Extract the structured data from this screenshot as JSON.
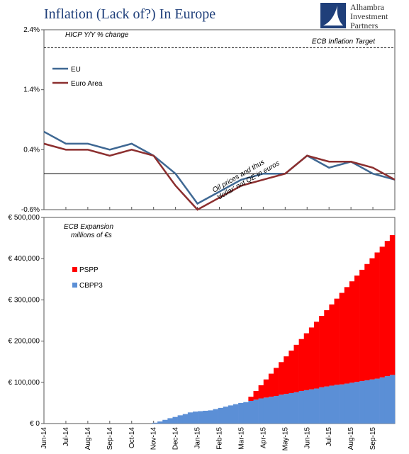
{
  "chart_data": [
    {
      "type": "line",
      "title": "Inflation (Lack of?) In Europe",
      "subtitle": "HICP Y/Y % change",
      "logo": [
        "Alhambra",
        "Investment",
        "Partners"
      ],
      "categories": [
        "Jun-14",
        "Jul-14",
        "Aug-14",
        "Sep-14",
        "Oct-14",
        "Nov-14",
        "Dec-14",
        "Jan-15",
        "Feb-15",
        "Mar-15",
        "Apr-15",
        "May-15",
        "Jun-15",
        "Jul-15",
        "Aug-15",
        "Sep-15",
        null
      ],
      "series": [
        {
          "name": "EU",
          "color": "#3f6893",
          "values": [
            0.7,
            0.5,
            0.5,
            0.4,
            0.5,
            0.3,
            0.0,
            -0.5,
            -0.3,
            -0.1,
            0.0,
            0.0,
            0.3,
            0.1,
            0.2,
            0.0,
            -0.1
          ]
        },
        {
          "name": "Euro Area",
          "color": "#8c2f2f",
          "values": [
            0.5,
            0.4,
            0.4,
            0.3,
            0.4,
            0.3,
            -0.2,
            -0.6,
            -0.4,
            -0.2,
            -0.1,
            0.0,
            0.3,
            0.2,
            0.2,
            0.1,
            -0.1
          ]
        }
      ],
      "ylim": [
        -0.6,
        2.4
      ],
      "yticks": [
        {
          "value": -0.6,
          "label": "-0.6%"
        },
        {
          "value": 0.4,
          "label": "0.4%"
        },
        {
          "value": 1.4,
          "label": "1.4%"
        },
        {
          "value": 2.4,
          "label": "2.4%"
        }
      ],
      "target": {
        "value": 2.1,
        "label": "ECB Inflation Target"
      },
      "annotation": [
        "Oil prices and thus",
        "'dollar' not QE in euros"
      ],
      "legend": "upper left"
    },
    {
      "type": "stacked-bar",
      "annotation": [
        "ECB Expansion",
        "millions of €s"
      ],
      "series": [
        {
          "name": "CBPP3",
          "color": "#5b8fd6",
          "values": [
            2000,
            5000,
            9000,
            13000,
            16000,
            20000,
            23000,
            27000,
            29000,
            30000,
            31000,
            32000,
            35000,
            38000,
            41000,
            44000,
            47000,
            50000,
            52000,
            55000,
            58000,
            61000,
            63000,
            65000,
            67000,
            70000,
            72000,
            74000,
            76000,
            79000,
            81000,
            83000,
            85000,
            88000,
            90000,
            92000,
            94000,
            95000,
            97000,
            99000,
            101000,
            103000,
            105000,
            107000,
            109000,
            112000,
            115000,
            118000
          ]
        },
        {
          "name": "PSPP",
          "color": "#ff0000",
          "values": [
            0,
            0,
            0,
            0,
            0,
            0,
            0,
            0,
            0,
            0,
            0,
            0,
            0,
            0,
            0,
            0,
            0,
            0,
            0,
            10000,
            21000,
            32000,
            44000,
            56000,
            68000,
            79000,
            91000,
            103000,
            115000,
            126000,
            138000,
            150000,
            162000,
            173000,
            185000,
            197000,
            209000,
            222000,
            234000,
            246000,
            258000,
            270000,
            282000,
            294000,
            306000,
            317000,
            328000,
            339000
          ]
        }
      ],
      "ylim": [
        0,
        500000
      ],
      "yticks": [
        {
          "value": 0,
          "label": "€ 0"
        },
        {
          "value": 100000,
          "label": "€ 100,000"
        },
        {
          "value": 200000,
          "label": "€ 200,000"
        },
        {
          "value": 300000,
          "label": "€ 300,000"
        },
        {
          "value": 400000,
          "label": "€ 400,000"
        },
        {
          "value": 500000,
          "label": "€ 500,000"
        }
      ],
      "legend": "center left"
    }
  ]
}
